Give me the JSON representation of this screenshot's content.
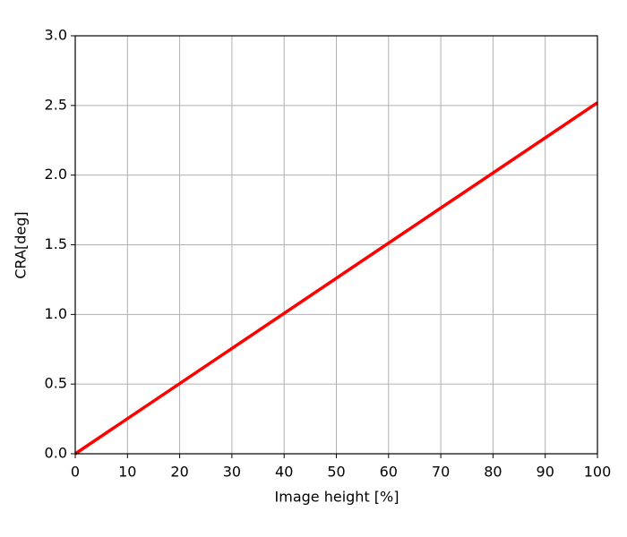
{
  "chart_data": {
    "type": "line",
    "x_label": "Image height [%]",
    "y_label": "CRA[deg]",
    "x": [
      0,
      100
    ],
    "values": [
      0,
      2.52
    ],
    "color": "#ff0000",
    "xlim": [
      0,
      100
    ],
    "ylim": [
      0,
      3
    ],
    "xticks": [
      0,
      10,
      20,
      30,
      40,
      50,
      60,
      70,
      80,
      90,
      100
    ],
    "yticks": [
      {
        "value": 0,
        "label": "0.0"
      },
      {
        "value": 0.5,
        "label": "0.5"
      },
      {
        "value": 1,
        "label": "1.0"
      },
      {
        "value": 1.5,
        "label": "1.5"
      },
      {
        "value": 2,
        "label": "2.0"
      },
      {
        "value": 2.5,
        "label": "2.5"
      },
      {
        "value": 3,
        "label": "3.0"
      }
    ],
    "grid": true
  }
}
